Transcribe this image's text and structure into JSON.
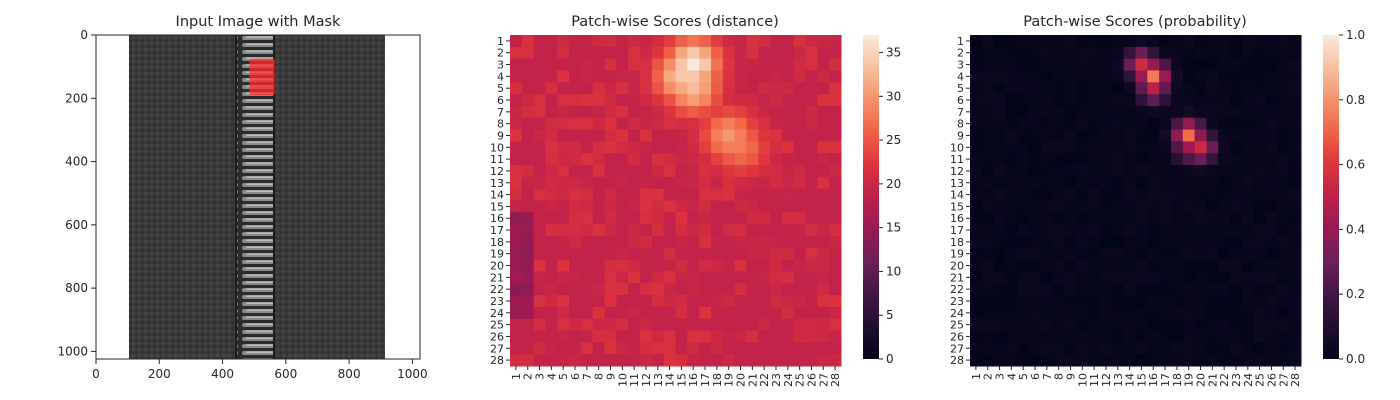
{
  "chart_data": [
    {
      "type": "image",
      "title": "Input Image with Mask",
      "xlim": [
        0,
        1024
      ],
      "ylim": [
        1024,
        0
      ],
      "xticks": [
        0,
        200,
        400,
        600,
        800,
        1000
      ],
      "yticks": [
        0,
        200,
        400,
        600,
        800,
        1000
      ],
      "image_description": "grayscale zipper tape with metal coil teeth running vertically",
      "fabric_x_range": [
        105,
        910
      ],
      "coil_x_range": [
        440,
        560
      ],
      "mask": {
        "x_range": [
          485,
          565
        ],
        "y_range": [
          75,
          190
        ],
        "color": "#ff2a2a"
      }
    },
    {
      "type": "heatmap",
      "title": "Patch-wise Scores (distance)",
      "rows": 28,
      "cols": 28,
      "tick_labels": [
        "1",
        "2",
        "3",
        "4",
        "5",
        "6",
        "7",
        "8",
        "9",
        "10",
        "11",
        "12",
        "13",
        "14",
        "15",
        "16",
        "17",
        "18",
        "19",
        "20",
        "21",
        "22",
        "23",
        "24",
        "25",
        "26",
        "27",
        "28"
      ],
      "colorbar": {
        "min": 0,
        "max": 37,
        "ticks": [
          0,
          5,
          10,
          15,
          20,
          25,
          30,
          35
        ]
      },
      "colormap": "rocket",
      "base_value": 19,
      "hotspots": [
        {
          "row": 3,
          "col": 16,
          "value": 37
        },
        {
          "row": 4,
          "col": 15,
          "value": 34
        },
        {
          "row": 5,
          "col": 16,
          "value": 33
        },
        {
          "row": 9,
          "col": 19,
          "value": 30
        },
        {
          "row": 10,
          "col": 20,
          "value": 28
        }
      ],
      "low_region": {
        "rows": [
          16,
          24
        ],
        "cols": [
          1,
          2
        ],
        "value": 13
      }
    },
    {
      "type": "heatmap",
      "title": "Patch-wise Scores (probability)",
      "rows": 28,
      "cols": 28,
      "tick_labels": [
        "1",
        "2",
        "3",
        "4",
        "5",
        "6",
        "7",
        "8",
        "9",
        "10",
        "11",
        "12",
        "13",
        "14",
        "15",
        "16",
        "17",
        "18",
        "19",
        "20",
        "21",
        "22",
        "23",
        "24",
        "25",
        "26",
        "27",
        "28"
      ],
      "colorbar": {
        "min": 0.0,
        "max": 1.0,
        "ticks": [
          "0.0",
          "0.2",
          "0.4",
          "0.6",
          "0.8",
          "1.0"
        ]
      },
      "colormap": "rocket",
      "hotspots": [
        {
          "row": 4,
          "col": 16,
          "value": 0.75
        },
        {
          "row": 3,
          "col": 15,
          "value": 0.55
        },
        {
          "row": 5,
          "col": 16,
          "value": 0.5
        },
        {
          "row": 9,
          "col": 19,
          "value": 0.72
        },
        {
          "row": 10,
          "col": 20,
          "value": 0.55
        },
        {
          "row": 10,
          "col": 19,
          "value": 0.42
        }
      ]
    }
  ]
}
